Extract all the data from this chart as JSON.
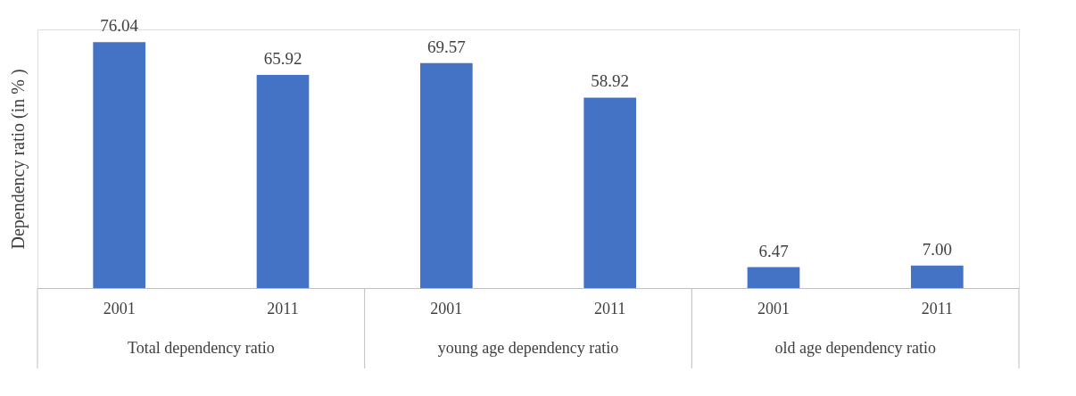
{
  "chart_data": {
    "type": "bar",
    "ylabel": "Dependency ratio (in % )",
    "categories": [
      "2001",
      "2011",
      "2001",
      "2011",
      "2001",
      "2011"
    ],
    "values": [
      76.04,
      65.92,
      69.57,
      58.92,
      6.47,
      7.0
    ],
    "value_labels": [
      "76.04",
      "65.92",
      "69.57",
      "58.92",
      "6.47",
      "7.00"
    ],
    "color": "#4472c4",
    "annotations": [
      "Total dependency ratio",
      "young age dependency ratio",
      "old age dependency ratio"
    ],
    "grid": false
  }
}
